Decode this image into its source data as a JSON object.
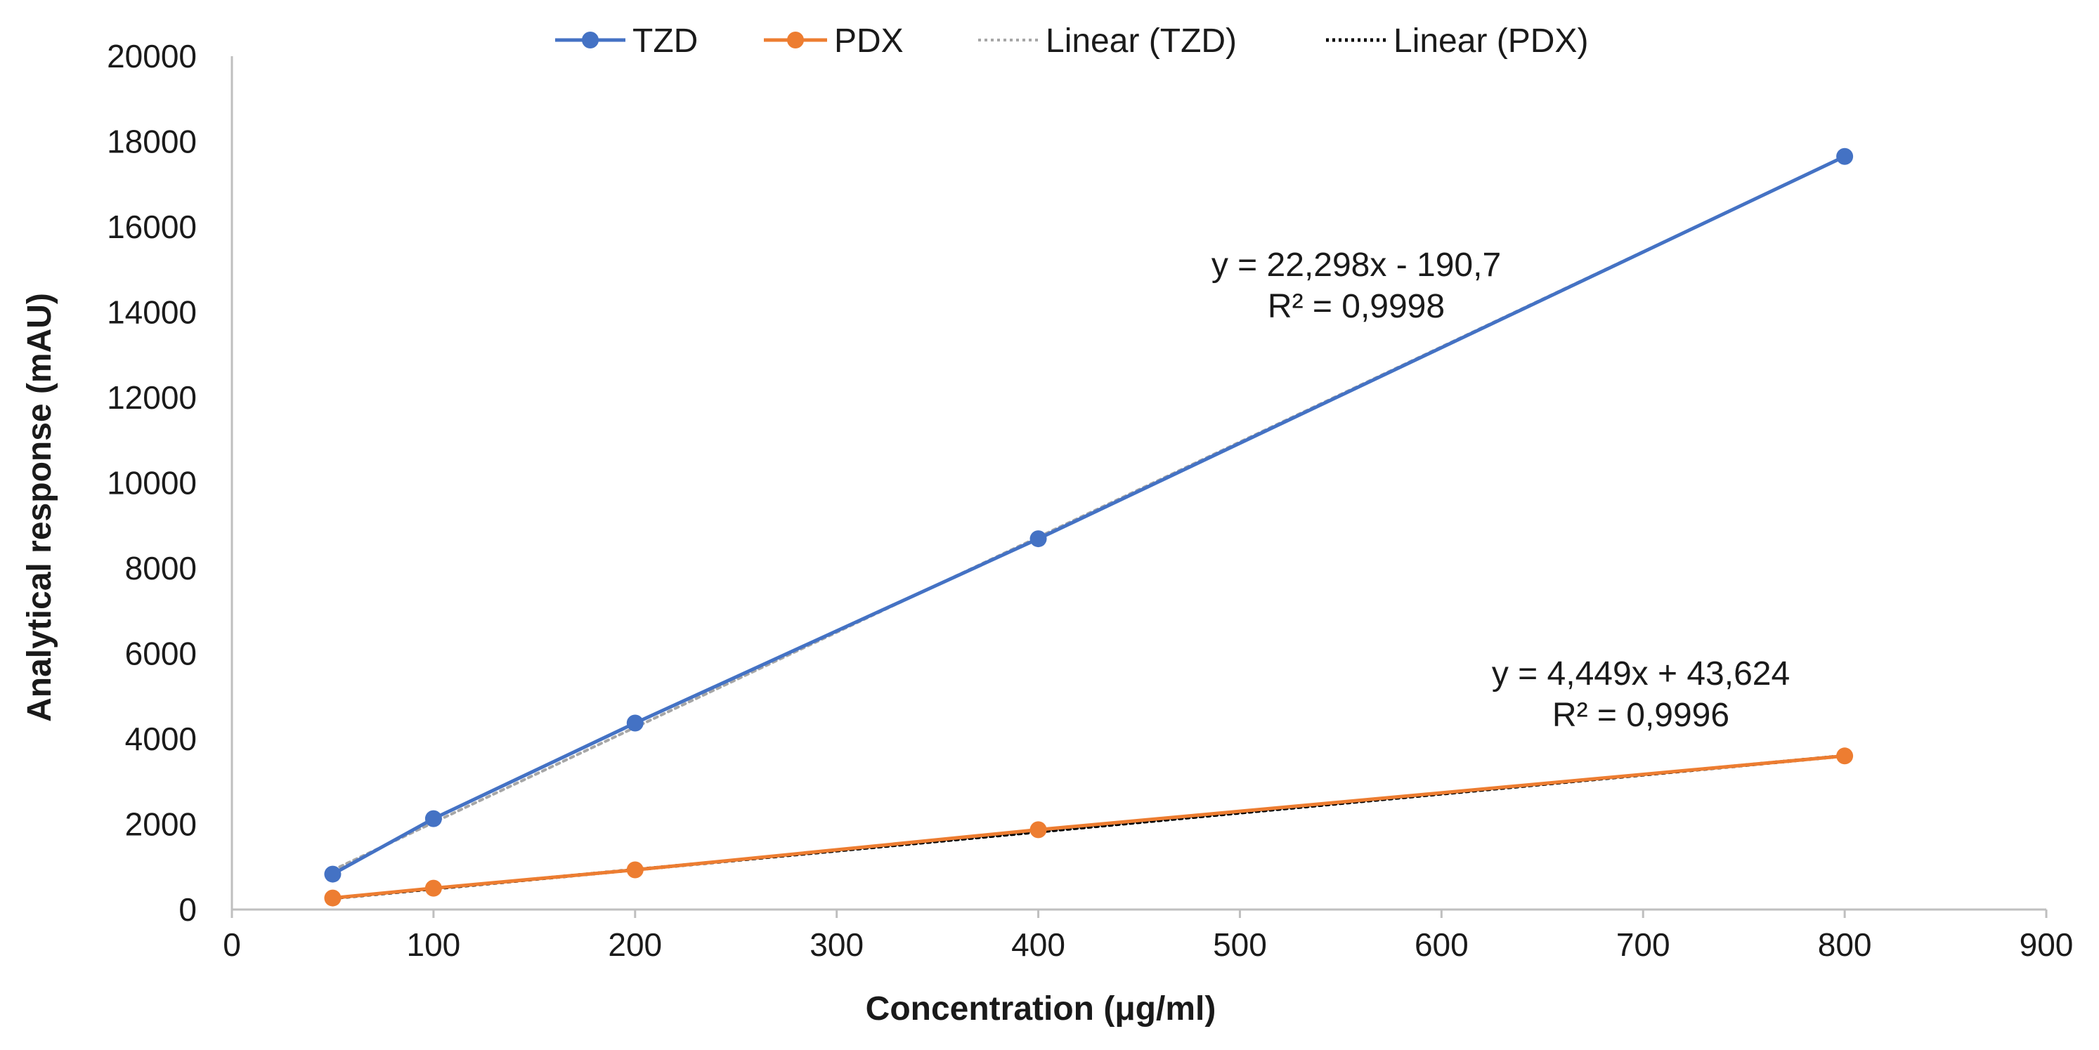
{
  "chart_data": {
    "type": "scatter",
    "title": "",
    "xlabel": "Concentration (μg/ml)",
    "ylabel": "Analytical response (mAU)",
    "xlim": [
      0,
      900
    ],
    "ylim": [
      0,
      20000
    ],
    "x_ticks": [
      0,
      100,
      200,
      300,
      400,
      500,
      600,
      700,
      800,
      900
    ],
    "y_ticks": [
      0,
      2000,
      4000,
      6000,
      8000,
      10000,
      12000,
      14000,
      16000,
      18000,
      20000
    ],
    "grid": false,
    "legend_position": "top",
    "series": [
      {
        "name": "TZD",
        "color": "#4472C4",
        "x": [
          50,
          100,
          200,
          400,
          800
        ],
        "y": [
          830,
          2130,
          4370,
          8690,
          17650
        ]
      },
      {
        "name": "PDX",
        "color": "#ED7D31",
        "x": [
          50,
          100,
          200,
          400,
          800
        ],
        "y": [
          270,
          500,
          930,
          1870,
          3600
        ]
      }
    ],
    "trendlines": [
      {
        "name": "Linear (TZD)",
        "series": "TZD",
        "slope": 22.298,
        "intercept": -190.7,
        "color": "#A6A6A6",
        "equation": "y = 22,298x - 190,7",
        "r_squared": "R² = 0,9998"
      },
      {
        "name": "Linear (PDX)",
        "series": "PDX",
        "slope": 4.449,
        "intercept": 43.624,
        "color": "#000000",
        "equation": "y = 4,449x + 43,624",
        "r_squared": "R² = 0,9996"
      }
    ]
  }
}
